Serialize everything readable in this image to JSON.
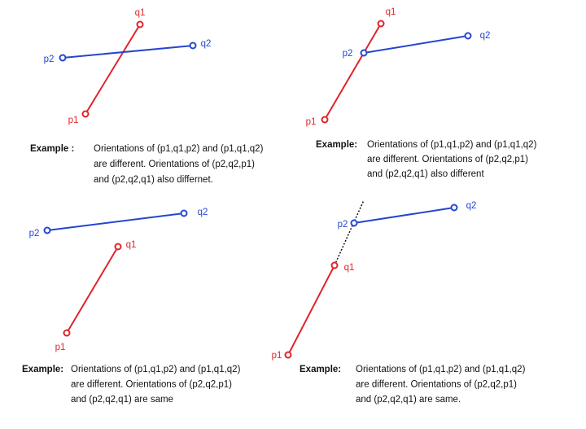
{
  "panels": [
    {
      "points": {
        "p1": "p1",
        "q1": "q1",
        "p2": "p2",
        "q2": "q2"
      },
      "caption": {
        "label": "Example :",
        "lines": [
          "Orientations of (p1,q1,p2) and (p1,q1,q2)",
          "are different. Orientations of (p2,q2,p1)",
          "and (p2,q2,q1) also differnet."
        ]
      }
    },
    {
      "points": {
        "p1": "p1",
        "q1": "q1",
        "p2": "p2",
        "q2": "q2"
      },
      "caption": {
        "label": "Example:",
        "lines": [
          "Orientations of (p1,q1,p2) and (p1,q1,q2)",
          "are different. Orientations of (p2,q2,p1)",
          "and (p2,q2,q1) also different"
        ]
      }
    },
    {
      "points": {
        "p1": "p1",
        "q1": "q1",
        "p2": "p2",
        "q2": "q2"
      },
      "caption": {
        "label": "Example:",
        "lines": [
          "Orientations of (p1,q1,p2) and (p1,q1,q2)",
          "are different. Orientations of (p2,q2,p1)",
          "and (p2,q2,q1) are same"
        ]
      }
    },
    {
      "points": {
        "p1": "p1",
        "q1": "q1",
        "p2": "p2",
        "q2": "q2"
      },
      "caption": {
        "label": "Example:",
        "lines": [
          "Orientations of (p1,q1,p2) and (p1,q1,q2)",
          "are different. Orientations of (p2,q2,p1)",
          "and (p2,q2,q1) are same."
        ]
      }
    }
  ]
}
